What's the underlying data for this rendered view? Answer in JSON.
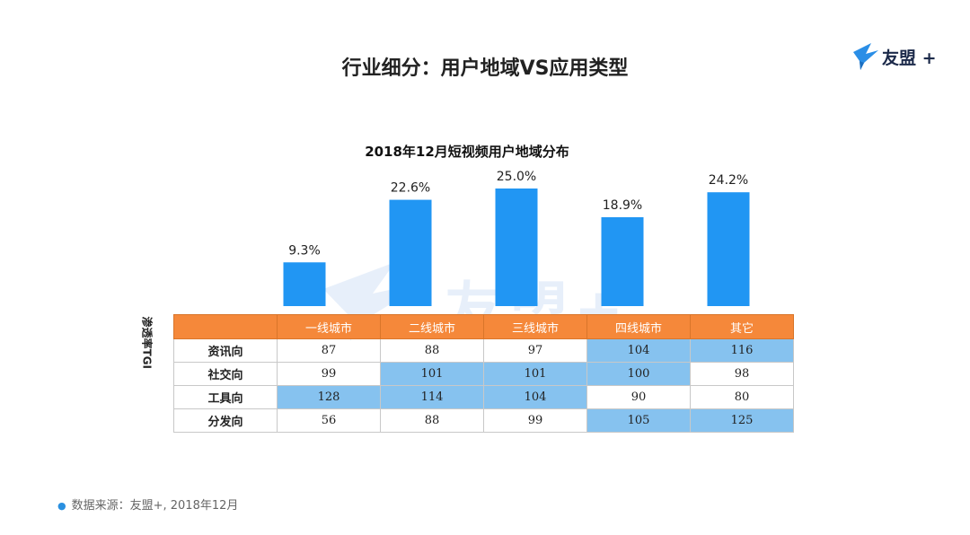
{
  "header": {
    "title": "行业细分：用户地域VS应用类型",
    "logo_text": "友盟 +"
  },
  "watermark": "友盟+",
  "chart_data": {
    "type": "bar",
    "title": "2018年12月短视频用户地域分布",
    "categories": [
      "一线城市",
      "二线城市",
      "三线城市",
      "四线城市",
      "其它"
    ],
    "values": [
      9.3,
      22.6,
      25.0,
      18.9,
      24.2
    ],
    "labels": [
      "9.3%",
      "22.6%",
      "25.0%",
      "18.9%",
      "24.2%"
    ],
    "unit": "%",
    "ylim": [
      0,
      25.0
    ],
    "color": "#2196f3",
    "grid": false
  },
  "table": {
    "side_label": "渗透率TGI",
    "columns": [
      "一线城市",
      "二线城市",
      "三线城市",
      "四线城市",
      "其它"
    ],
    "header_color": "#f5883a",
    "highlight_color": "#86c2ef",
    "rows": [
      {
        "name": "资讯向",
        "values": [
          "87",
          "88",
          "97",
          "104",
          "116"
        ],
        "highlight": [
          false,
          false,
          false,
          true,
          true
        ]
      },
      {
        "name": "社交向",
        "values": [
          "99",
          "101",
          "101",
          "100",
          "98"
        ],
        "highlight": [
          false,
          true,
          true,
          true,
          false
        ]
      },
      {
        "name": "工具向",
        "values": [
          "128",
          "114",
          "104",
          "90",
          "80"
        ],
        "highlight": [
          true,
          true,
          true,
          false,
          false
        ]
      },
      {
        "name": "分发向",
        "values": [
          "56",
          "88",
          "99",
          "105",
          "125"
        ],
        "highlight": [
          false,
          false,
          false,
          true,
          true
        ]
      }
    ]
  },
  "source": "数据来源：友盟+, 2018年12月"
}
